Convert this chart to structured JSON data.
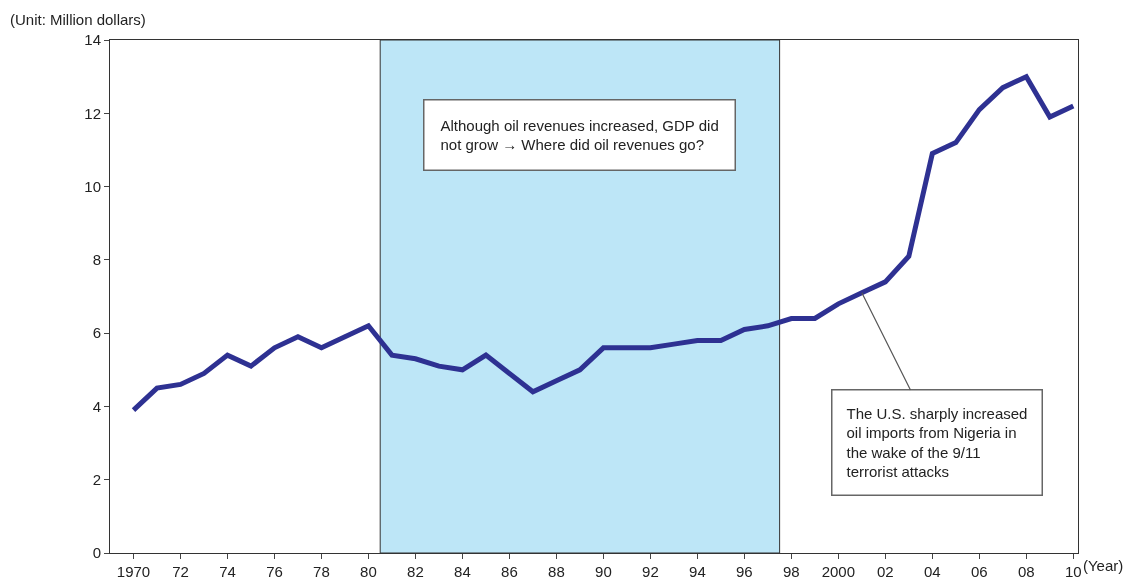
{
  "chart_data": {
    "type": "line",
    "ylabel": "(Unit: Million dollars)",
    "xlabel": "(Year)",
    "x": [
      1970,
      1971,
      1972,
      1973,
      1974,
      1975,
      1976,
      1977,
      1978,
      1979,
      1980,
      1981,
      1982,
      1983,
      1984,
      1985,
      1986,
      1987,
      1988,
      1989,
      1990,
      1991,
      1992,
      1993,
      1994,
      1995,
      1996,
      1997,
      1998,
      1999,
      2000,
      2001,
      2002,
      2003,
      2004,
      2005,
      2006,
      2007,
      2008,
      2009,
      2010
    ],
    "series": [
      {
        "color": "#2e3192",
        "values": [
          3.9,
          4.5,
          4.6,
          4.9,
          5.4,
          5.1,
          5.6,
          5.9,
          5.6,
          5.9,
          6.2,
          5.4,
          5.3,
          5.1,
          5.0,
          5.4,
          4.9,
          4.4,
          4.7,
          5.0,
          5.6,
          5.6,
          5.6,
          5.7,
          5.8,
          5.8,
          6.1,
          6.2,
          6.4,
          6.4,
          6.8,
          7.1,
          7.4,
          8.1,
          10.9,
          11.2,
          12.1,
          12.7,
          13.0,
          11.9,
          12.2
        ]
      }
    ],
    "xlim": [
      1969,
      2010.2
    ],
    "xticks": [
      1970,
      {
        "value": 1972,
        "label": "72"
      },
      {
        "value": 1974,
        "label": "74"
      },
      {
        "value": 1976,
        "label": "76"
      },
      {
        "value": 1978,
        "label": "78"
      },
      {
        "value": 1980,
        "label": "80"
      },
      {
        "value": 1982,
        "label": "82"
      },
      {
        "value": 1984,
        "label": "84"
      },
      {
        "value": 1986,
        "label": "86"
      },
      {
        "value": 1988,
        "label": "88"
      },
      {
        "value": 1990,
        "label": "90"
      },
      {
        "value": 1992,
        "label": "92"
      },
      {
        "value": 1994,
        "label": "94"
      },
      {
        "value": 1996,
        "label": "96"
      },
      {
        "value": 1998,
        "label": "98"
      },
      2000,
      {
        "value": 2002,
        "label": "02"
      },
      {
        "value": 2004,
        "label": "04"
      },
      {
        "value": 2006,
        "label": "06"
      },
      {
        "value": 2008,
        "label": "08"
      },
      {
        "value": 2010,
        "label": "10"
      }
    ],
    "ylim": [
      0,
      14
    ],
    "yticks": [
      0,
      2,
      4,
      6,
      8,
      10,
      12,
      14
    ],
    "marker": "none",
    "line_style": "solid",
    "bands": [
      {
        "axis": "x",
        "from": 1980.5,
        "to": 1997.5,
        "color": "#bde6f7"
      }
    ],
    "annotations": [
      "Although oil revenues increased, GDP did not grow → Where did oil revenues go?",
      {
        "text": "The U.S. sharply increased oil imports from Nigeria in the wake of the 9/11 terrorist attacks",
        "x": 2001,
        "y": 7.1
      }
    ]
  }
}
